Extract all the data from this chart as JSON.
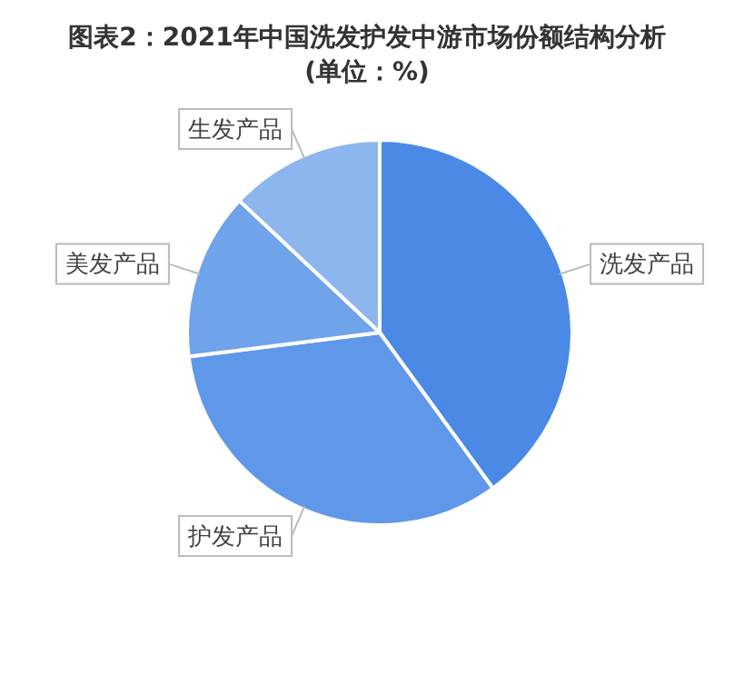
{
  "chart_data": {
    "type": "pie",
    "title": "图表2：2021年中国洗发护发中游市场份额结构分析(单位：%)",
    "categories": [
      "洗发产品",
      "护发产品",
      "美发产品",
      "生发产品"
    ],
    "values": [
      40,
      33,
      14,
      13
    ],
    "colors": [
      "#4a8ae6",
      "#5f98e8",
      "#6fa3ea",
      "#8db6ee"
    ],
    "legend": false
  }
}
